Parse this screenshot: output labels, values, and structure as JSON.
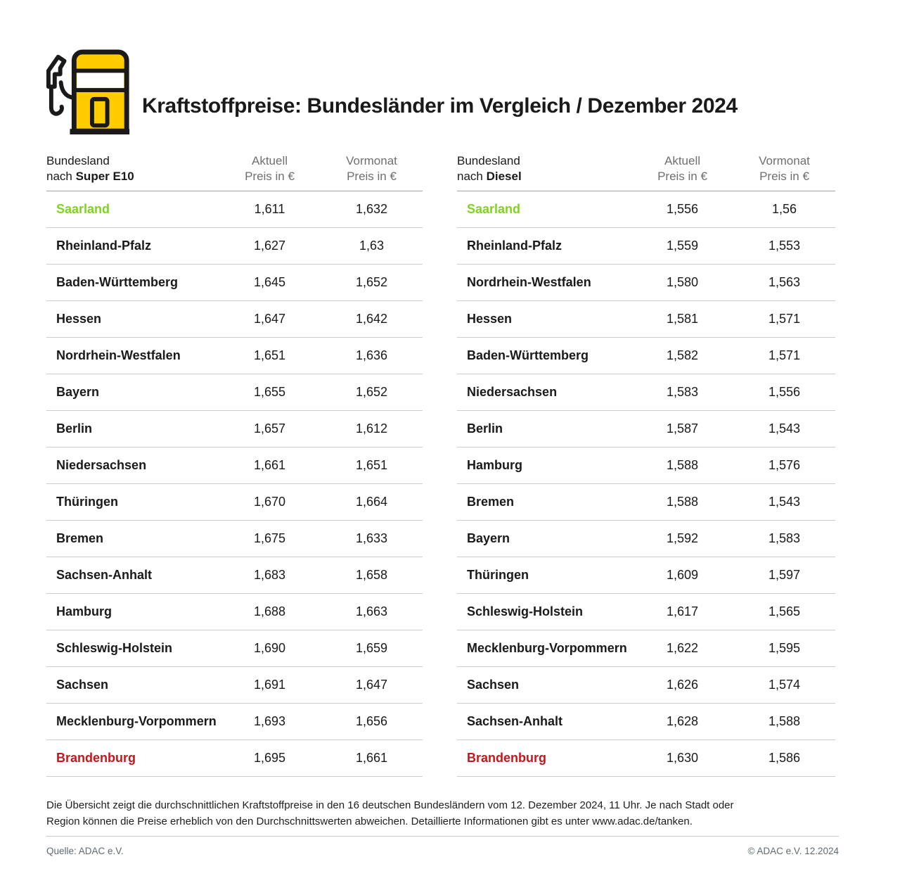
{
  "header": {
    "title": "Kraftstoffpreise: Bundesländer im Vergleich / Dezember 2024"
  },
  "colors": {
    "green": "#7ed41f",
    "red": "#c9141a",
    "yellow": "#ffcc00",
    "ink": "#1a1a1a"
  },
  "tables": [
    {
      "fuel": "Super E10",
      "head": {
        "line1": "Bundesland",
        "line2_prefix": "nach ",
        "line2_fuel": "Super E10",
        "col1_top": "Aktuell",
        "col1_bottom": "Preis in €",
        "col2_top": "Vormonat",
        "col2_bottom": "Preis in €"
      },
      "rows": [
        {
          "land": "Saarland",
          "aktuell": "1,611",
          "vormonat": "1,632",
          "highlight": "green"
        },
        {
          "land": "Rheinland-Pfalz",
          "aktuell": "1,627",
          "vormonat": "1,63",
          "highlight": ""
        },
        {
          "land": "Baden-Württemberg",
          "aktuell": "1,645",
          "vormonat": "1,652",
          "highlight": ""
        },
        {
          "land": "Hessen",
          "aktuell": "1,647",
          "vormonat": "1,642",
          "highlight": ""
        },
        {
          "land": "Nordrhein-Westfalen",
          "aktuell": "1,651",
          "vormonat": "1,636",
          "highlight": ""
        },
        {
          "land": "Bayern",
          "aktuell": "1,655",
          "vormonat": "1,652",
          "highlight": ""
        },
        {
          "land": "Berlin",
          "aktuell": "1,657",
          "vormonat": "1,612",
          "highlight": ""
        },
        {
          "land": "Niedersachsen",
          "aktuell": "1,661",
          "vormonat": "1,651",
          "highlight": ""
        },
        {
          "land": "Thüringen",
          "aktuell": "1,670",
          "vormonat": "1,664",
          "highlight": ""
        },
        {
          "land": "Bremen",
          "aktuell": "1,675",
          "vormonat": "1,633",
          "highlight": ""
        },
        {
          "land": "Sachsen-Anhalt",
          "aktuell": "1,683",
          "vormonat": "1,658",
          "highlight": ""
        },
        {
          "land": "Hamburg",
          "aktuell": "1,688",
          "vormonat": "1,663",
          "highlight": ""
        },
        {
          "land": "Schleswig-Holstein",
          "aktuell": "1,690",
          "vormonat": "1,659",
          "highlight": ""
        },
        {
          "land": "Sachsen",
          "aktuell": "1,691",
          "vormonat": "1,647",
          "highlight": ""
        },
        {
          "land": "Mecklenburg-Vorpommern",
          "aktuell": "1,693",
          "vormonat": "1,656",
          "highlight": ""
        },
        {
          "land": "Brandenburg",
          "aktuell": "1,695",
          "vormonat": "1,661",
          "highlight": "red"
        }
      ]
    },
    {
      "fuel": "Diesel",
      "head": {
        "line1": "Bundesland",
        "line2_prefix": "nach ",
        "line2_fuel": "Diesel",
        "col1_top": "Aktuell",
        "col1_bottom": "Preis in €",
        "col2_top": "Vormonat",
        "col2_bottom": "Preis in €"
      },
      "rows": [
        {
          "land": "Saarland",
          "aktuell": "1,556",
          "vormonat": "1,56",
          "highlight": "green"
        },
        {
          "land": "Rheinland-Pfalz",
          "aktuell": "1,559",
          "vormonat": "1,553",
          "highlight": ""
        },
        {
          "land": "Nordrhein-Westfalen",
          "aktuell": "1,580",
          "vormonat": "1,563",
          "highlight": ""
        },
        {
          "land": "Hessen",
          "aktuell": "1,581",
          "vormonat": "1,571",
          "highlight": ""
        },
        {
          "land": "Baden-Württemberg",
          "aktuell": "1,582",
          "vormonat": "1,571",
          "highlight": ""
        },
        {
          "land": "Niedersachsen",
          "aktuell": "1,583",
          "vormonat": "1,556",
          "highlight": ""
        },
        {
          "land": "Berlin",
          "aktuell": "1,587",
          "vormonat": "1,543",
          "highlight": ""
        },
        {
          "land": "Hamburg",
          "aktuell": "1,588",
          "vormonat": "1,576",
          "highlight": ""
        },
        {
          "land": "Bremen",
          "aktuell": "1,588",
          "vormonat": "1,543",
          "highlight": ""
        },
        {
          "land": "Bayern",
          "aktuell": "1,592",
          "vormonat": "1,583",
          "highlight": ""
        },
        {
          "land": "Thüringen",
          "aktuell": "1,609",
          "vormonat": "1,597",
          "highlight": ""
        },
        {
          "land": "Schleswig-Holstein",
          "aktuell": "1,617",
          "vormonat": "1,565",
          "highlight": ""
        },
        {
          "land": "Mecklenburg-Vorpommern",
          "aktuell": "1,622",
          "vormonat": "1,595",
          "highlight": ""
        },
        {
          "land": "Sachsen",
          "aktuell": "1,626",
          "vormonat": "1,574",
          "highlight": ""
        },
        {
          "land": "Sachsen-Anhalt",
          "aktuell": "1,628",
          "vormonat": "1,588",
          "highlight": ""
        },
        {
          "land": "Brandenburg",
          "aktuell": "1,630",
          "vormonat": "1,586",
          "highlight": "red"
        }
      ]
    }
  ],
  "footnote": "Die Übersicht zeigt die durchschnittlichen Kraftstoffpreise in den 16 deutschen Bundesländern vom 12. Dezember 2024, 11 Uhr. Je nach Stadt oder Region können die Preise erheblich von den Durchschnittswerten abweichen. Detaillierte Informationen gibt es unter www.adac.de/tanken.",
  "credits": {
    "source": "Quelle: ADAC e.V.",
    "copyright": "© ADAC e.V. 12.2024"
  },
  "chart_data": [
    {
      "type": "table",
      "title": "Bundesland nach Super E10",
      "columns": [
        "Bundesland",
        "Aktuell Preis in €",
        "Vormonat Preis in €"
      ],
      "rows": [
        [
          "Saarland",
          1.611,
          1.632
        ],
        [
          "Rheinland-Pfalz",
          1.627,
          1.63
        ],
        [
          "Baden-Württemberg",
          1.645,
          1.652
        ],
        [
          "Hessen",
          1.647,
          1.642
        ],
        [
          "Nordrhein-Westfalen",
          1.651,
          1.636
        ],
        [
          "Bayern",
          1.655,
          1.652
        ],
        [
          "Berlin",
          1.657,
          1.612
        ],
        [
          "Niedersachsen",
          1.661,
          1.651
        ],
        [
          "Thüringen",
          1.67,
          1.664
        ],
        [
          "Bremen",
          1.675,
          1.633
        ],
        [
          "Sachsen-Anhalt",
          1.683,
          1.658
        ],
        [
          "Hamburg",
          1.688,
          1.663
        ],
        [
          "Schleswig-Holstein",
          1.69,
          1.659
        ],
        [
          "Sachsen",
          1.691,
          1.647
        ],
        [
          "Mecklenburg-Vorpommern",
          1.693,
          1.656
        ],
        [
          "Brandenburg",
          1.695,
          1.661
        ]
      ],
      "annotations": {
        "cheapest_highlighted_green": "Saarland",
        "most_expensive_highlighted_red": "Brandenburg"
      }
    },
    {
      "type": "table",
      "title": "Bundesland nach Diesel",
      "columns": [
        "Bundesland",
        "Aktuell Preis in €",
        "Vormonat Preis in €"
      ],
      "rows": [
        [
          "Saarland",
          1.556,
          1.56
        ],
        [
          "Rheinland-Pfalz",
          1.559,
          1.553
        ],
        [
          "Nordrhein-Westfalen",
          1.58,
          1.563
        ],
        [
          "Hessen",
          1.581,
          1.571
        ],
        [
          "Baden-Württemberg",
          1.582,
          1.571
        ],
        [
          "Niedersachsen",
          1.583,
          1.556
        ],
        [
          "Berlin",
          1.587,
          1.543
        ],
        [
          "Hamburg",
          1.588,
          1.576
        ],
        [
          "Bremen",
          1.588,
          1.543
        ],
        [
          "Bayern",
          1.592,
          1.583
        ],
        [
          "Thüringen",
          1.609,
          1.597
        ],
        [
          "Schleswig-Holstein",
          1.617,
          1.565
        ],
        [
          "Mecklenburg-Vorpommern",
          1.622,
          1.595
        ],
        [
          "Sachsen",
          1.626,
          1.574
        ],
        [
          "Sachsen-Anhalt",
          1.628,
          1.588
        ],
        [
          "Brandenburg",
          1.63,
          1.586
        ]
      ],
      "annotations": {
        "cheapest_highlighted_green": "Saarland",
        "most_expensive_highlighted_red": "Brandenburg"
      }
    }
  ]
}
